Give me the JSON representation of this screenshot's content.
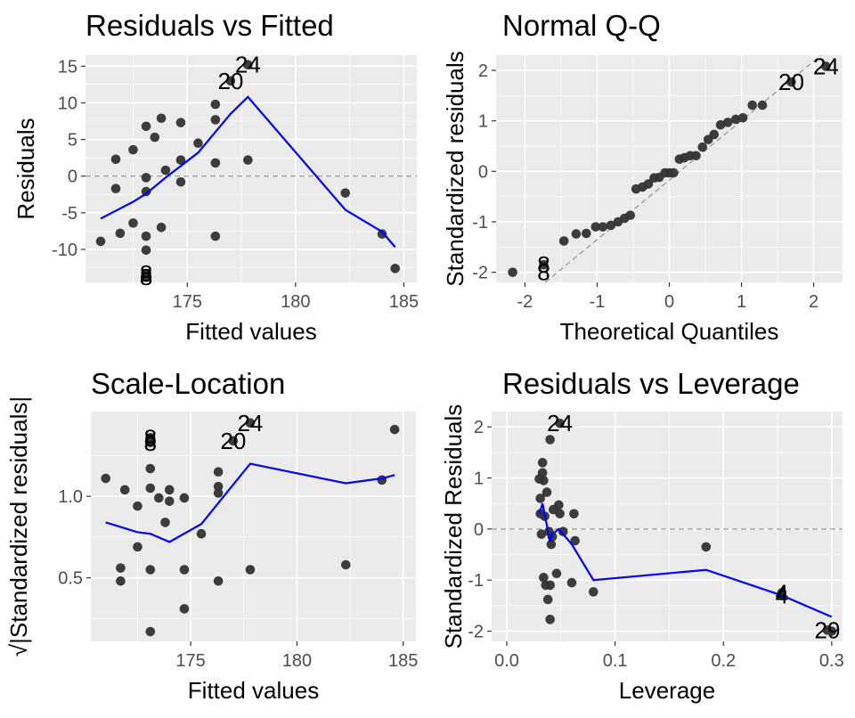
{
  "colors": {
    "point": "#333333",
    "smooth": "#0000ff",
    "panel": "#ebebeb",
    "refline": "#808080"
  },
  "chart_data": [
    {
      "type": "scatter",
      "title": "Residuals vs Fitted",
      "xlabel": "Fitted values",
      "ylabel": "Residuals",
      "xlim": [
        170.3,
        185.6
      ],
      "ylim": [
        -14.5,
        16.5
      ],
      "xticks": [
        175,
        180,
        185
      ],
      "xtick_labels": [
        "175",
        "180",
        "185"
      ],
      "yticks": [
        -10,
        -5,
        0,
        5,
        10,
        15
      ],
      "ytick_labels": [
        "-10",
        "-5",
        "0",
        "5",
        "10",
        "15"
      ],
      "hline": 0,
      "points": [
        [
          171.0,
          -8.9
        ],
        [
          171.7,
          2.3
        ],
        [
          171.7,
          -1.7
        ],
        [
          171.9,
          -7.8
        ],
        [
          172.5,
          3.6
        ],
        [
          172.5,
          -6.4
        ],
        [
          173.1,
          6.8
        ],
        [
          173.1,
          -0.2
        ],
        [
          173.1,
          -2.1
        ],
        [
          173.1,
          -8.2
        ],
        [
          173.1,
          -10.1
        ],
        [
          173.1,
          -13.3
        ],
        [
          173.1,
          -13.8
        ],
        [
          173.5,
          5.3
        ],
        [
          173.8,
          7.9
        ],
        [
          173.8,
          -7.0
        ],
        [
          174.0,
          0.8
        ],
        [
          174.7,
          7.3
        ],
        [
          174.7,
          2.2
        ],
        [
          174.7,
          -0.8
        ],
        [
          175.5,
          4.5
        ],
        [
          176.3,
          9.8
        ],
        [
          176.3,
          7.7
        ],
        [
          176.3,
          1.8
        ],
        [
          176.3,
          -8.2
        ],
        [
          177.0,
          13.0
        ],
        [
          177.8,
          15.2
        ],
        [
          177.8,
          2.2
        ],
        [
          182.3,
          -2.3
        ],
        [
          184.0,
          -7.9
        ],
        [
          184.6,
          -12.6
        ]
      ],
      "smooth": [
        [
          171.0,
          -5.8
        ],
        [
          172.5,
          -3.5
        ],
        [
          173.1,
          -2.4
        ],
        [
          174.0,
          -0.2
        ],
        [
          175.5,
          3.2
        ],
        [
          177.0,
          8.5
        ],
        [
          177.8,
          10.8
        ],
        [
          182.3,
          -4.6
        ],
        [
          184.0,
          -7.6
        ],
        [
          184.6,
          -9.7
        ]
      ],
      "labels": [
        {
          "text": "24",
          "x": 177.8,
          "y": 15.2
        },
        {
          "text": "20",
          "x": 177.0,
          "y": 13.0
        },
        {
          "text": "8",
          "x": 173.1,
          "y": -13.3
        },
        {
          "text": "8",
          "x": 173.1,
          "y": -13.8
        }
      ]
    },
    {
      "type": "scatter",
      "title": "Normal Q-Q",
      "xlabel": "Theoretical Quantiles",
      "ylabel": "Standardized residuals",
      "xlim": [
        -2.4,
        2.4
      ],
      "ylim": [
        -2.2,
        2.3
      ],
      "xticks": [
        -2,
        -1,
        0,
        1,
        2
      ],
      "xtick_labels": [
        "-2",
        "-1",
        "0",
        "1",
        "2"
      ],
      "yticks": [
        -2,
        -1,
        0,
        1,
        2
      ],
      "ytick_labels": [
        "-2",
        "-1",
        "0",
        "1",
        "2"
      ],
      "refline": [
        [
          -1.72,
          -2.2
        ],
        [
          2.1,
          2.3
        ]
      ],
      "points": [
        [
          -2.17,
          -2.0
        ],
        [
          -1.74,
          -1.85
        ],
        [
          -1.46,
          -1.38
        ],
        [
          -1.29,
          -1.24
        ],
        [
          -1.15,
          -1.23
        ],
        [
          -1.02,
          -1.1
        ],
        [
          -0.92,
          -1.1
        ],
        [
          -0.81,
          -1.07
        ],
        [
          -0.71,
          -1.0
        ],
        [
          -0.62,
          -0.93
        ],
        [
          -0.54,
          -0.87
        ],
        [
          -0.46,
          -0.35
        ],
        [
          -0.37,
          -0.31
        ],
        [
          -0.29,
          -0.25
        ],
        [
          -0.21,
          -0.13
        ],
        [
          -0.14,
          -0.12
        ],
        [
          -0.06,
          -0.03
        ],
        [
          0.0,
          -0.03
        ],
        [
          0.06,
          -0.03
        ],
        [
          0.14,
          0.24
        ],
        [
          0.21,
          0.27
        ],
        [
          0.29,
          0.31
        ],
        [
          0.37,
          0.31
        ],
        [
          0.46,
          0.48
        ],
        [
          0.54,
          0.63
        ],
        [
          0.62,
          0.73
        ],
        [
          0.71,
          0.92
        ],
        [
          0.81,
          0.97
        ],
        [
          0.92,
          1.03
        ],
        [
          1.02,
          1.06
        ],
        [
          1.15,
          1.31
        ],
        [
          1.29,
          1.31
        ],
        [
          1.69,
          1.77
        ],
        [
          2.17,
          2.08
        ]
      ],
      "labels": [
        {
          "text": "24",
          "x": 2.17,
          "y": 2.08
        },
        {
          "text": "20",
          "x": 1.69,
          "y": 1.77
        },
        {
          "text": "8",
          "x": -1.74,
          "y": -1.85
        },
        {
          "text": "8",
          "x": -1.74,
          "y": -2.0
        }
      ]
    },
    {
      "type": "scatter",
      "title": "Scale-Location",
      "xlabel": "Fitted values",
      "ylabel": "√|Standardized residuals|",
      "xlim": [
        170.3,
        185.6
      ],
      "ylim": [
        0.11,
        1.52
      ],
      "xticks": [
        175,
        180,
        185
      ],
      "xtick_labels": [
        "175",
        "180",
        "185"
      ],
      "yticks": [
        0.5,
        1.0
      ],
      "ytick_labels": [
        "0.5",
        "1.0"
      ],
      "points": [
        [
          171.0,
          1.11
        ],
        [
          171.7,
          0.56
        ],
        [
          171.7,
          0.48
        ],
        [
          171.9,
          1.04
        ],
        [
          172.5,
          0.94
        ],
        [
          172.5,
          0.69
        ],
        [
          173.1,
          1.36
        ],
        [
          173.1,
          1.33
        ],
        [
          173.1,
          1.17
        ],
        [
          173.1,
          1.05
        ],
        [
          173.1,
          0.55
        ],
        [
          173.1,
          0.17
        ],
        [
          173.5,
          0.99
        ],
        [
          173.8,
          0.84
        ],
        [
          174.0,
          1.04
        ],
        [
          174.0,
          0.97
        ],
        [
          174.7,
          0.99
        ],
        [
          174.7,
          0.55
        ],
        [
          174.7,
          0.31
        ],
        [
          175.5,
          0.77
        ],
        [
          176.3,
          1.15
        ],
        [
          176.3,
          1.06
        ],
        [
          176.3,
          1.02
        ],
        [
          176.3,
          0.48
        ],
        [
          177.0,
          1.34
        ],
        [
          177.8,
          1.45
        ],
        [
          177.8,
          0.55
        ],
        [
          182.3,
          0.58
        ],
        [
          184.0,
          1.1
        ],
        [
          184.6,
          1.41
        ]
      ],
      "smooth": [
        [
          171.0,
          0.84
        ],
        [
          172.5,
          0.78
        ],
        [
          173.1,
          0.77
        ],
        [
          174.0,
          0.72
        ],
        [
          175.5,
          0.83
        ],
        [
          177.8,
          1.2
        ],
        [
          182.3,
          1.08
        ],
        [
          184.0,
          1.11
        ],
        [
          184.6,
          1.13
        ]
      ],
      "labels": [
        {
          "text": "24",
          "x": 177.8,
          "y": 1.45
        },
        {
          "text": "20",
          "x": 177.0,
          "y": 1.34
        },
        {
          "text": "8",
          "x": 173.1,
          "y": 1.36
        },
        {
          "text": "8",
          "x": 173.1,
          "y": 1.33
        }
      ]
    },
    {
      "type": "scatter",
      "title": "Residuals vs Leverage",
      "xlabel": "Leverage",
      "ylabel": "Standardized Residuals",
      "xlim": [
        -0.014,
        0.31
      ],
      "ylim": [
        -2.2,
        2.3
      ],
      "xticks": [
        0.0,
        0.1,
        0.2,
        0.3
      ],
      "xtick_labels": [
        "0.0",
        "0.1",
        "0.2",
        "0.3"
      ],
      "yticks": [
        -2,
        -1,
        0,
        1,
        2
      ],
      "ytick_labels": [
        "-2",
        "-1",
        "0",
        "1",
        "2"
      ],
      "hline": 0,
      "points": [
        [
          0.03,
          0.98
        ],
        [
          0.031,
          0.6
        ],
        [
          0.031,
          0.3
        ],
        [
          0.032,
          -0.1
        ],
        [
          0.033,
          1.3
        ],
        [
          0.033,
          1.1
        ],
        [
          0.034,
          0.95
        ],
        [
          0.034,
          -0.95
        ],
        [
          0.035,
          0.25
        ],
        [
          0.036,
          -1.1
        ],
        [
          0.037,
          0.72
        ],
        [
          0.038,
          -1.38
        ],
        [
          0.039,
          -0.05
        ],
        [
          0.04,
          1.75
        ],
        [
          0.04,
          -1.77
        ],
        [
          0.04,
          -1.1
        ],
        [
          0.041,
          -0.3
        ],
        [
          0.042,
          -0.15
        ],
        [
          0.043,
          0.38
        ],
        [
          0.046,
          -0.87
        ],
        [
          0.048,
          0.47
        ],
        [
          0.049,
          2.07
        ],
        [
          0.049,
          0.3
        ],
        [
          0.052,
          -0.05
        ],
        [
          0.06,
          -1.05
        ],
        [
          0.062,
          0.3
        ],
        [
          0.063,
          -0.23
        ],
        [
          0.08,
          -1.23
        ],
        [
          0.184,
          -0.35
        ],
        [
          0.254,
          -1.25
        ],
        [
          0.254,
          -1.3
        ],
        [
          0.296,
          -1.98
        ],
        [
          0.3,
          -2.0
        ]
      ],
      "smooth": [
        [
          0.03,
          0.3
        ],
        [
          0.033,
          0.5
        ],
        [
          0.04,
          -0.25
        ],
        [
          0.042,
          -0.1
        ],
        [
          0.048,
          0.0
        ],
        [
          0.06,
          -0.3
        ],
        [
          0.08,
          -1.0
        ],
        [
          0.184,
          -0.8
        ],
        [
          0.254,
          -1.3
        ],
        [
          0.3,
          -1.72
        ]
      ],
      "labels": [
        {
          "text": "24",
          "x": 0.049,
          "y": 2.07
        },
        {
          "text": "4",
          "x": 0.254,
          "y": -1.25
        },
        {
          "text": "4",
          "x": 0.254,
          "y": -1.3
        },
        {
          "text": "29",
          "x": 0.296,
          "y": -1.98
        }
      ]
    }
  ]
}
